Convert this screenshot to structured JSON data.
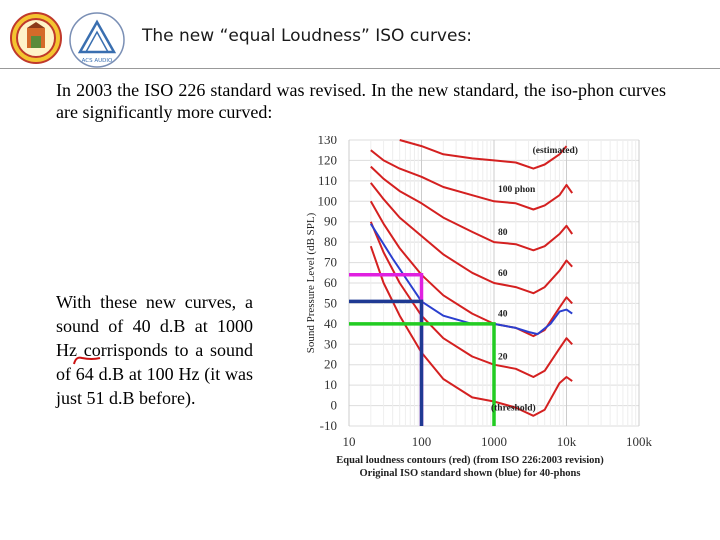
{
  "slide": {
    "title": "The new “equal Loudness” ISO curves:",
    "intro": "In 2003 the ISO 226 standard was revised. In the new standard, the iso-phon curves are significantly more curved:",
    "side_text_parts": [
      "With these new curves, a sound of 40 d.B at 1000 Hz corrisponds to a sound of ",
      "64 d.B",
      " at 100 Hz (it was just 51 d.B before)."
    ]
  },
  "logos": {
    "logo1": {
      "name": "university-seal",
      "color": "#c0392b"
    },
    "logo2": {
      "name": "acoustics-triangle-logo",
      "text": "ACS AUDIO",
      "color": "#3a6fb0"
    }
  },
  "chart_data": {
    "type": "line",
    "ylabel": "Sound Pressure Level (dB SPL)",
    "caption_line1": "Equal loudness contours (red) (from ISO 226:2003 revision)",
    "caption_line2": "Original ISO standard shown (blue) for 40-phons",
    "xscale": "log",
    "xlim": [
      10,
      100000
    ],
    "ylim": [
      -10,
      130
    ],
    "x_ticks": [
      {
        "value": 10,
        "label": "10"
      },
      {
        "value": 100,
        "label": "100"
      },
      {
        "value": 1000,
        "label": "1000"
      },
      {
        "value": 10000,
        "label": "10k"
      },
      {
        "value": 100000,
        "label": "100k"
      }
    ],
    "y_ticks": [
      {
        "value": 130,
        "label": "130"
      },
      {
        "value": 120,
        "label": "120"
      },
      {
        "value": 110,
        "label": "110"
      },
      {
        "value": 100,
        "label": "100"
      },
      {
        "value": 90,
        "label": "90"
      },
      {
        "value": 80,
        "label": "80"
      },
      {
        "value": 70,
        "label": "70"
      },
      {
        "value": 60,
        "label": "60"
      },
      {
        "value": 50,
        "label": "50"
      },
      {
        "value": 40,
        "label": "40"
      },
      {
        "value": 30,
        "label": "30"
      },
      {
        "value": 20,
        "label": "20"
      },
      {
        "value": 10,
        "label": "10"
      },
      {
        "value": 0,
        "label": "0"
      },
      {
        "value": -10,
        "label": "-10"
      }
    ],
    "series": [
      {
        "name": "threshold",
        "color": "#d42020",
        "points": [
          [
            20,
            78
          ],
          [
            30,
            60
          ],
          [
            50,
            44
          ],
          [
            100,
            26
          ],
          [
            200,
            13
          ],
          [
            500,
            4
          ],
          [
            1000,
            2
          ],
          [
            2000,
            -1
          ],
          [
            3500,
            -5
          ],
          [
            5000,
            -2
          ],
          [
            8000,
            11
          ],
          [
            10000,
            14
          ],
          [
            12000,
            12
          ]
        ]
      },
      {
        "name": "20 phon",
        "color": "#d42020",
        "points": [
          [
            20,
            90
          ],
          [
            30,
            75
          ],
          [
            50,
            60
          ],
          [
            100,
            44
          ],
          [
            200,
            33
          ],
          [
            500,
            24
          ],
          [
            1000,
            20
          ],
          [
            2000,
            18
          ],
          [
            3500,
            14
          ],
          [
            5000,
            17
          ],
          [
            8000,
            28
          ],
          [
            10000,
            33
          ],
          [
            12000,
            30
          ]
        ]
      },
      {
        "name": "40 phon",
        "color": "#d42020",
        "points": [
          [
            20,
            100
          ],
          [
            30,
            89
          ],
          [
            50,
            77
          ],
          [
            100,
            64
          ],
          [
            200,
            54
          ],
          [
            500,
            45
          ],
          [
            1000,
            40
          ],
          [
            2000,
            38
          ],
          [
            3500,
            34
          ],
          [
            5000,
            37
          ],
          [
            8000,
            48
          ],
          [
            10000,
            53
          ],
          [
            12000,
            50
          ]
        ]
      },
      {
        "name": "60 phon",
        "color": "#d42020",
        "points": [
          [
            20,
            109
          ],
          [
            30,
            101
          ],
          [
            50,
            92
          ],
          [
            100,
            83
          ],
          [
            200,
            74
          ],
          [
            500,
            65
          ],
          [
            1000,
            60
          ],
          [
            2000,
            58
          ],
          [
            3500,
            55
          ],
          [
            5000,
            58
          ],
          [
            8000,
            66
          ],
          [
            10000,
            71
          ],
          [
            12000,
            68
          ]
        ]
      },
      {
        "name": "80 phon",
        "color": "#d42020",
        "points": [
          [
            20,
            117
          ],
          [
            30,
            111
          ],
          [
            50,
            105
          ],
          [
            100,
            99
          ],
          [
            200,
            92
          ],
          [
            500,
            85
          ],
          [
            1000,
            80
          ],
          [
            2000,
            79
          ],
          [
            3500,
            76
          ],
          [
            5000,
            78
          ],
          [
            8000,
            84
          ],
          [
            10000,
            88
          ],
          [
            12000,
            84
          ]
        ]
      },
      {
        "name": "100 phon",
        "color": "#d42020",
        "points": [
          [
            20,
            125
          ],
          [
            30,
            120
          ],
          [
            50,
            116
          ],
          [
            100,
            112
          ],
          [
            200,
            107
          ],
          [
            500,
            103
          ],
          [
            1000,
            100
          ],
          [
            2000,
            99
          ],
          [
            3500,
            96
          ],
          [
            5000,
            98
          ],
          [
            8000,
            103
          ],
          [
            10000,
            108
          ],
          [
            12000,
            104
          ]
        ]
      },
      {
        "name": "estimated 120",
        "color": "#d42020",
        "points": [
          [
            50,
            130
          ],
          [
            100,
            127
          ],
          [
            200,
            123
          ],
          [
            500,
            121
          ],
          [
            1000,
            120
          ],
          [
            2000,
            119
          ],
          [
            3500,
            116
          ],
          [
            5000,
            118
          ],
          [
            8000,
            123
          ],
          [
            10000,
            127
          ]
        ]
      },
      {
        "name": "Original ISO 40 phon",
        "color": "#2a3fcf",
        "points": [
          [
            20,
            89
          ],
          [
            40,
            72
          ],
          [
            100,
            51
          ],
          [
            200,
            44
          ],
          [
            500,
            40
          ],
          [
            1000,
            40
          ],
          [
            2000,
            38
          ],
          [
            3000,
            36
          ],
          [
            4000,
            35
          ],
          [
            6000,
            40
          ],
          [
            8000,
            46
          ],
          [
            10000,
            47
          ],
          [
            12000,
            45
          ]
        ]
      }
    ],
    "curve_labels": [
      {
        "text": "(estimated)",
        "x": 3000,
        "y": 125
      },
      {
        "text": "100 phon",
        "x": 1000,
        "y": 106
      },
      {
        "text": "80",
        "x": 1000,
        "y": 85
      },
      {
        "text": "60",
        "x": 1000,
        "y": 65
      },
      {
        "text": "40",
        "x": 1000,
        "y": 45
      },
      {
        "text": "20",
        "x": 1000,
        "y": 24
      },
      {
        "text": "(threshold)",
        "x": 800,
        "y": -1
      }
    ],
    "markers": [
      {
        "name": "magenta",
        "color": "#e020e0",
        "x": 100,
        "y": 64
      },
      {
        "name": "navy",
        "color": "#1f3a93",
        "x": 100,
        "y": 51
      },
      {
        "name": "green",
        "color": "#22cc22",
        "x": 1000,
        "y": 40
      }
    ]
  }
}
